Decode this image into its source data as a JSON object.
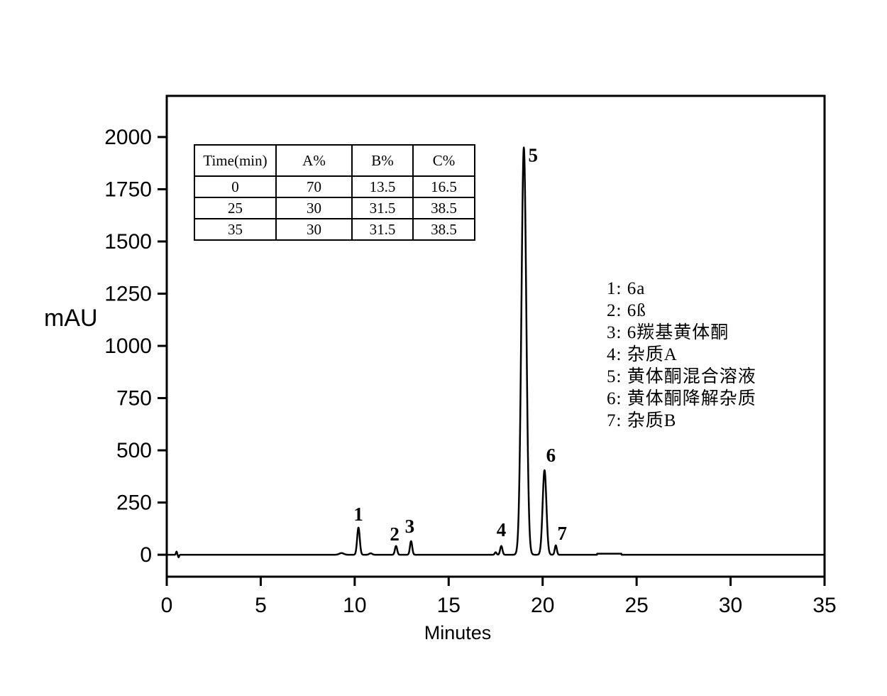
{
  "figure": {
    "background": "#ffffff",
    "axis_color": "#000000",
    "trace_color": "#000000"
  },
  "gradient_table": {
    "headers": [
      "Time(min)",
      "A%",
      "B%",
      "C%"
    ],
    "rows": [
      [
        "0",
        "70",
        "13.5",
        "16.5"
      ],
      [
        "25",
        "30",
        "31.5",
        "38.5"
      ],
      [
        "35",
        "30",
        "31.5",
        "38.5"
      ]
    ]
  },
  "peak_legend": [
    "1: 6a",
    "2: 6ß",
    "3: 6羰基黄体酮",
    "4: 杂质A",
    "5: 黄体酮混合溶液",
    "6: 黄体酮降解杂质",
    "7: 杂质B"
  ],
  "chart_data": {
    "type": "line",
    "title": "",
    "xlabel": "Minutes",
    "ylabel": "mAU",
    "xlim": [
      0,
      35
    ],
    "ylim": [
      -105,
      2197
    ],
    "x_ticks": [
      0,
      5,
      10,
      15,
      20,
      25,
      30,
      35
    ],
    "y_ticks": [
      0,
      250,
      500,
      750,
      1000,
      1250,
      1500,
      1750,
      2000
    ],
    "grid": false,
    "legend_position": "right-middle",
    "baseline_mau": 0,
    "peaks": [
      {
        "label": "1",
        "name": "6a",
        "retention_min": 10.2,
        "height_mau": 130,
        "sigma_min": 0.07,
        "label_offset": [
          0,
          -10
        ]
      },
      {
        "label": "2",
        "name": "6ß",
        "retention_min": 12.2,
        "height_mau": 42,
        "sigma_min": 0.06,
        "label_offset": [
          -2,
          -8
        ]
      },
      {
        "label": "3",
        "name": "6羰基黄体酮",
        "retention_min": 13.0,
        "height_mau": 65,
        "sigma_min": 0.06,
        "label_offset": [
          -2,
          -12
        ]
      },
      {
        "label": "4",
        "name": "杂质A",
        "retention_min": 17.8,
        "height_mau": 42,
        "sigma_min": 0.06,
        "label_offset": [
          0,
          -14
        ]
      },
      {
        "label": "5",
        "name": "黄体酮混合溶液",
        "retention_min": 19.0,
        "height_mau": 1950,
        "sigma_min": 0.13,
        "label_offset": [
          13,
          20
        ]
      },
      {
        "label": "6",
        "name": "黄体酮降解杂质",
        "retention_min": 20.1,
        "height_mau": 405,
        "sigma_min": 0.1,
        "label_offset": [
          9,
          -12
        ]
      },
      {
        "label": "7",
        "name": "杂质B",
        "retention_min": 20.7,
        "height_mau": 45,
        "sigma_min": 0.055,
        "label_offset": [
          9,
          -8
        ]
      }
    ],
    "artifacts": [
      {
        "shape": "spike",
        "x": 0.52,
        "amp": 15,
        "sigma": 0.03
      },
      {
        "shape": "spike",
        "x": 0.63,
        "amp": -12,
        "sigma": 0.03
      },
      {
        "shape": "spike",
        "x": 9.3,
        "amp": 8,
        "sigma": 0.12
      },
      {
        "shape": "spike",
        "x": 10.85,
        "amp": 7,
        "sigma": 0.08
      },
      {
        "shape": "spike",
        "x": 17.5,
        "amp": 12,
        "sigma": 0.05
      },
      {
        "shape": "box",
        "from": 22.9,
        "to": 24.2,
        "amp": 5
      }
    ]
  }
}
